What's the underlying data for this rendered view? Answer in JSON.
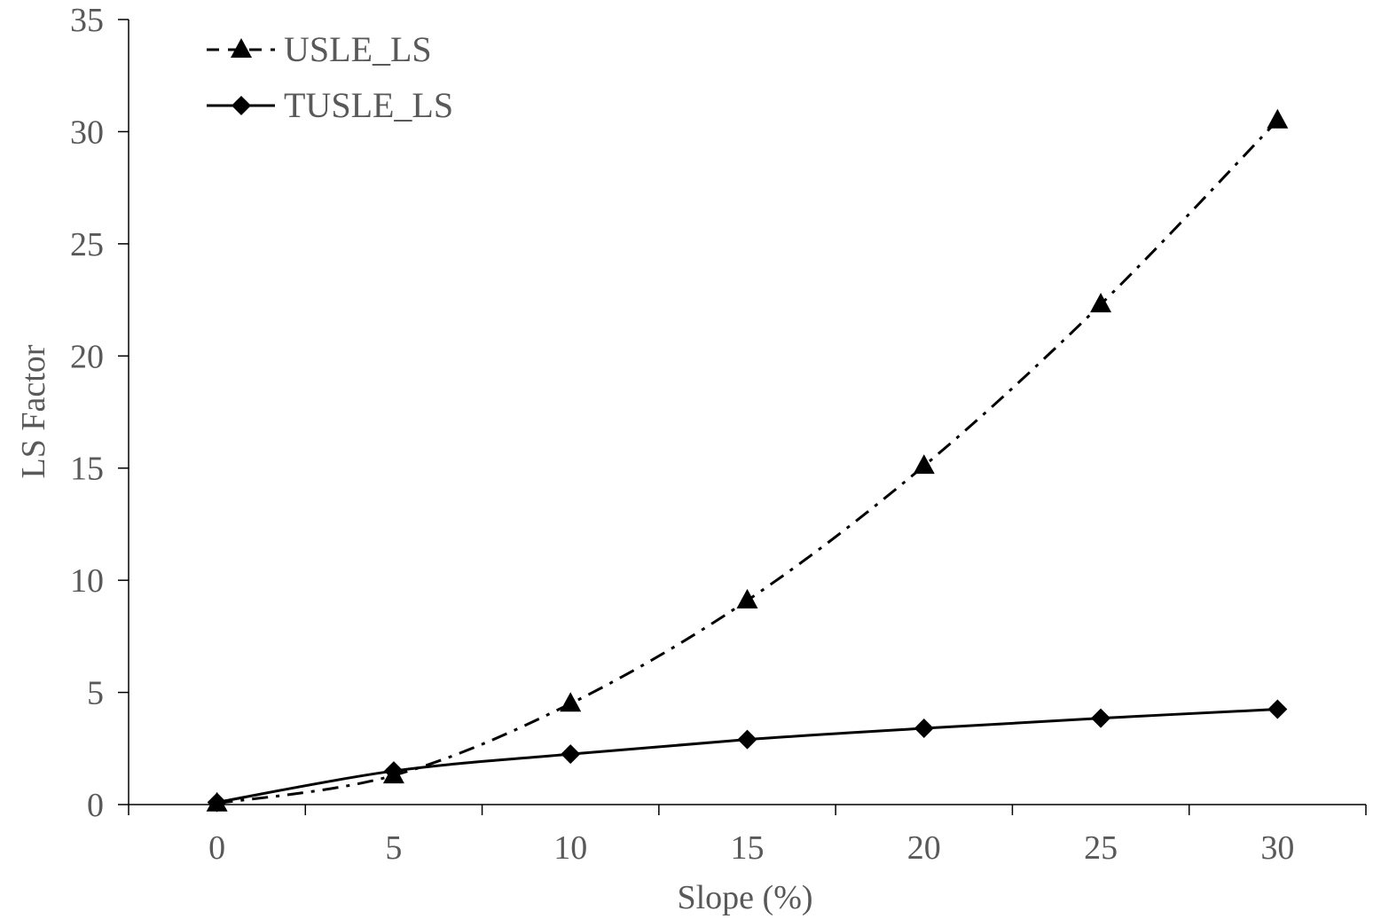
{
  "chart_data": {
    "type": "line",
    "title": "",
    "xlabel": "Slope (%)",
    "ylabel": "LS Factor",
    "x": [
      0,
      5,
      10,
      15,
      20,
      25,
      30
    ],
    "xlim": [
      -2.5,
      32.5
    ],
    "ylim": [
      0,
      35
    ],
    "xticks": [
      "0",
      "5",
      "10",
      "15",
      "20",
      "25",
      "30"
    ],
    "yticks": [
      "0",
      "5",
      "10",
      "15",
      "20",
      "25",
      "30",
      "35"
    ],
    "grid": false,
    "legend_position": "top-left",
    "series": [
      {
        "name": "USLE_LS",
        "values": [
          0.05,
          1.3,
          4.5,
          9.1,
          15.1,
          22.3,
          30.5
        ],
        "line_style": "dash-dot",
        "marker": "triangle",
        "color": "#000000"
      },
      {
        "name": "TUSLE_LS",
        "values": [
          0.1,
          1.5,
          2.25,
          2.9,
          3.4,
          3.85,
          4.25
        ],
        "line_style": "solid",
        "marker": "diamond",
        "color": "#000000"
      }
    ]
  }
}
